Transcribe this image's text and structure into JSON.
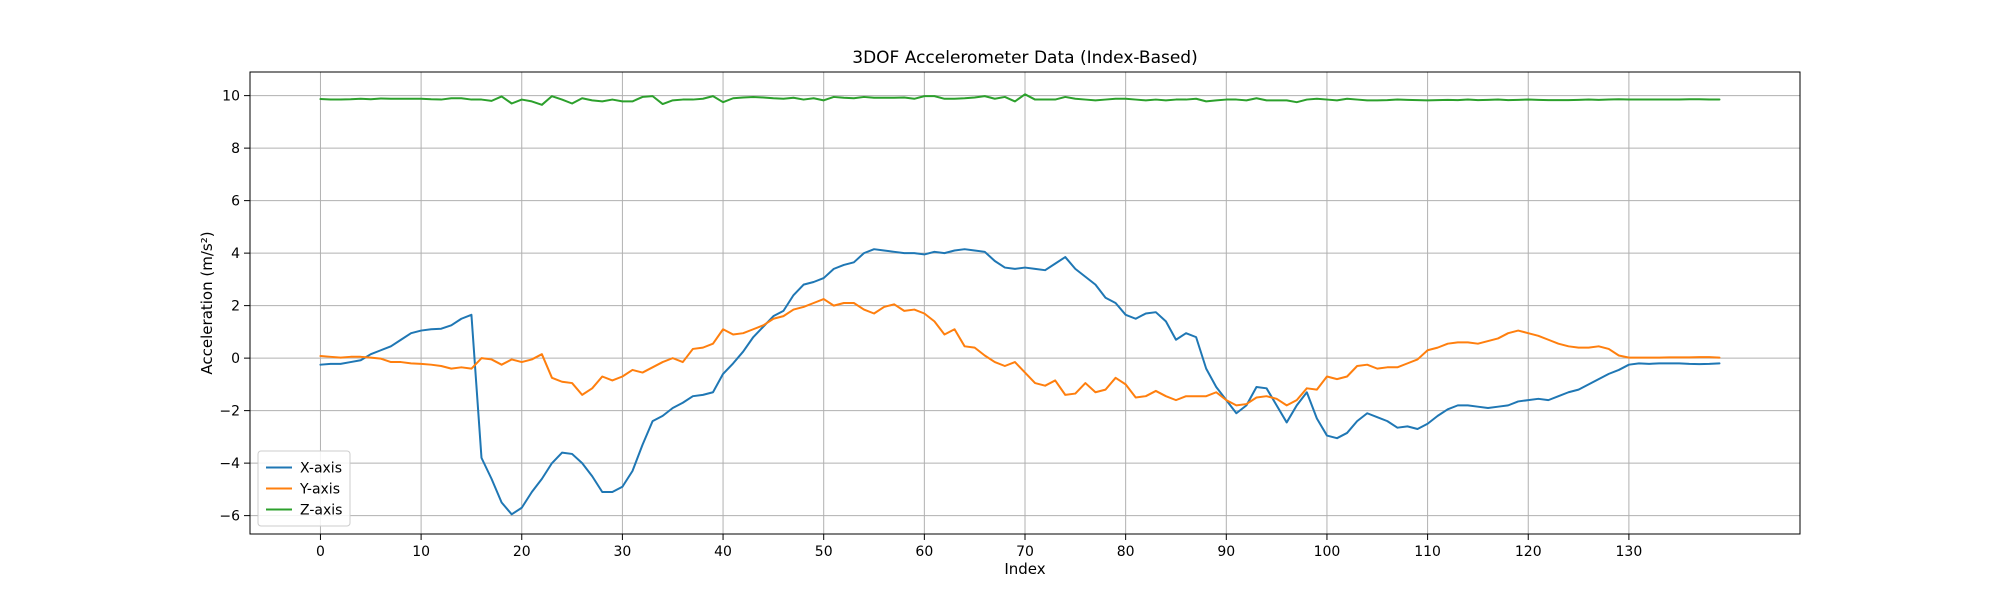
{
  "chart_data": {
    "type": "line",
    "title": "3DOF Accelerometer Data (Index-Based)",
    "xlabel": "Index",
    "ylabel": "Acceleration (m/s²)",
    "xlim": [
      -7,
      147
    ],
    "ylim": [
      -6.7,
      10.9
    ],
    "x_ticks": [
      0,
      10,
      20,
      30,
      40,
      50,
      60,
      70,
      80,
      90,
      100,
      110,
      120,
      130
    ],
    "y_ticks": [
      -6,
      -4,
      -2,
      0,
      2,
      4,
      6,
      8,
      10
    ],
    "grid": true,
    "legend_position": "lower-left",
    "x": [
      0,
      1,
      2,
      3,
      4,
      5,
      6,
      7,
      8,
      9,
      10,
      11,
      12,
      13,
      14,
      15,
      16,
      17,
      18,
      19,
      20,
      21,
      22,
      23,
      24,
      25,
      26,
      27,
      28,
      29,
      30,
      31,
      32,
      33,
      34,
      35,
      36,
      37,
      38,
      39,
      40,
      41,
      42,
      43,
      44,
      45,
      46,
      47,
      48,
      49,
      50,
      51,
      52,
      53,
      54,
      55,
      56,
      57,
      58,
      59,
      60,
      61,
      62,
      63,
      64,
      65,
      66,
      67,
      68,
      69,
      70,
      71,
      72,
      73,
      74,
      75,
      76,
      77,
      78,
      79,
      80,
      81,
      82,
      83,
      84,
      85,
      86,
      87,
      88,
      89,
      90,
      91,
      92,
      93,
      94,
      95,
      96,
      97,
      98,
      99,
      100,
      101,
      102,
      103,
      104,
      105,
      106,
      107,
      108,
      109,
      110,
      111,
      112,
      113,
      114,
      115,
      116,
      117,
      118,
      119,
      120,
      121,
      122,
      123,
      124,
      125,
      126,
      127,
      128,
      129,
      130,
      131,
      132,
      133,
      134,
      135,
      136,
      137,
      138,
      139
    ],
    "series": [
      {
        "name": "X-axis",
        "color": "#1f77b4",
        "values": [
          -0.25,
          -0.22,
          -0.22,
          -0.15,
          -0.08,
          0.15,
          0.3,
          0.45,
          0.7,
          0.95,
          1.05,
          1.1,
          1.12,
          1.25,
          1.5,
          1.65,
          -3.8,
          -4.6,
          -5.5,
          -5.95,
          -5.7,
          -5.1,
          -4.6,
          -4.0,
          -3.6,
          -3.65,
          -4.0,
          -4.5,
          -5.1,
          -5.1,
          -4.9,
          -4.3,
          -3.3,
          -2.4,
          -2.2,
          -1.9,
          -1.7,
          -1.45,
          -1.4,
          -1.3,
          -0.6,
          -0.2,
          0.25,
          0.8,
          1.2,
          1.6,
          1.8,
          2.4,
          2.8,
          2.9,
          3.05,
          3.4,
          3.55,
          3.65,
          4.0,
          4.15,
          4.1,
          4.05,
          4.0,
          4.0,
          3.95,
          4.05,
          4.0,
          4.1,
          4.15,
          4.1,
          4.05,
          3.7,
          3.45,
          3.4,
          3.45,
          3.4,
          3.35,
          3.6,
          3.85,
          3.4,
          3.1,
          2.8,
          2.3,
          2.1,
          1.65,
          1.5,
          1.7,
          1.75,
          1.4,
          0.7,
          0.95,
          0.8,
          -0.4,
          -1.1,
          -1.6,
          -2.1,
          -1.8,
          -1.1,
          -1.15,
          -1.8,
          -2.45,
          -1.8,
          -1.3,
          -2.3,
          -2.95,
          -3.05,
          -2.85,
          -2.4,
          -2.1,
          -2.25,
          -2.4,
          -2.65,
          -2.6,
          -2.7,
          -2.5,
          -2.2,
          -1.95,
          -1.8,
          -1.8,
          -1.85,
          -1.9,
          -1.85,
          -1.8,
          -1.65,
          -1.6,
          -1.55,
          -1.6,
          -1.45,
          -1.3,
          -1.2,
          -1.0,
          -0.8,
          -0.6,
          -0.45,
          -0.25,
          -0.2,
          -0.22,
          -0.2,
          -0.2,
          -0.2,
          -0.22,
          -0.23,
          -0.22,
          -0.2
        ]
      },
      {
        "name": "Y-axis",
        "color": "#ff7f0e",
        "values": [
          0.08,
          0.05,
          0.02,
          0.05,
          0.05,
          0.02,
          -0.02,
          -0.15,
          -0.15,
          -0.2,
          -0.22,
          -0.25,
          -0.3,
          -0.4,
          -0.35,
          -0.4,
          0.0,
          -0.05,
          -0.25,
          -0.05,
          -0.15,
          -0.05,
          0.15,
          -0.75,
          -0.9,
          -0.95,
          -1.4,
          -1.15,
          -0.7,
          -0.85,
          -0.7,
          -0.45,
          -0.55,
          -0.35,
          -0.15,
          0.0,
          -0.15,
          0.35,
          0.4,
          0.55,
          1.1,
          0.9,
          0.95,
          1.1,
          1.25,
          1.5,
          1.6,
          1.85,
          1.95,
          2.1,
          2.25,
          2.0,
          2.1,
          2.1,
          1.85,
          1.7,
          1.95,
          2.05,
          1.8,
          1.85,
          1.7,
          1.4,
          0.9,
          1.1,
          0.45,
          0.4,
          0.1,
          -0.15,
          -0.3,
          -0.15,
          -0.55,
          -0.95,
          -1.05,
          -0.85,
          -1.4,
          -1.35,
          -0.95,
          -1.3,
          -1.2,
          -0.75,
          -1.0,
          -1.5,
          -1.45,
          -1.25,
          -1.45,
          -1.6,
          -1.45,
          -1.45,
          -1.45,
          -1.3,
          -1.6,
          -1.8,
          -1.75,
          -1.5,
          -1.45,
          -1.55,
          -1.8,
          -1.6,
          -1.15,
          -1.2,
          -0.7,
          -0.8,
          -0.7,
          -0.3,
          -0.25,
          -0.4,
          -0.35,
          -0.35,
          -0.2,
          -0.05,
          0.3,
          0.4,
          0.55,
          0.6,
          0.6,
          0.55,
          0.65,
          0.75,
          0.95,
          1.05,
          0.95,
          0.85,
          0.7,
          0.55,
          0.45,
          0.4,
          0.4,
          0.45,
          0.35,
          0.1,
          0.02,
          0.02,
          0.02,
          0.02,
          0.03,
          0.03,
          0.03,
          0.04,
          0.04,
          0.02
        ]
      },
      {
        "name": "Z-axis",
        "color": "#2ca02c",
        "values": [
          9.87,
          9.85,
          9.85,
          9.86,
          9.88,
          9.86,
          9.89,
          9.88,
          9.88,
          9.88,
          9.88,
          9.86,
          9.85,
          9.9,
          9.9,
          9.85,
          9.85,
          9.8,
          9.97,
          9.7,
          9.85,
          9.78,
          9.65,
          9.98,
          9.85,
          9.7,
          9.9,
          9.82,
          9.78,
          9.85,
          9.78,
          9.78,
          9.95,
          9.98,
          9.68,
          9.82,
          9.85,
          9.85,
          9.88,
          9.98,
          9.75,
          9.9,
          9.93,
          9.95,
          9.93,
          9.9,
          9.88,
          9.92,
          9.85,
          9.9,
          9.82,
          9.95,
          9.92,
          9.9,
          9.95,
          9.92,
          9.92,
          9.92,
          9.93,
          9.88,
          9.98,
          9.98,
          9.88,
          9.88,
          9.9,
          9.93,
          9.98,
          9.88,
          9.95,
          9.78,
          10.05,
          9.85,
          9.85,
          9.85,
          9.95,
          9.88,
          9.85,
          9.82,
          9.85,
          9.88,
          9.88,
          9.85,
          9.82,
          9.85,
          9.82,
          9.85,
          9.85,
          9.88,
          9.78,
          9.82,
          9.85,
          9.85,
          9.82,
          9.9,
          9.82,
          9.82,
          9.82,
          9.75,
          9.85,
          9.88,
          9.85,
          9.82,
          9.88,
          9.85,
          9.82,
          9.82,
          9.83,
          9.85,
          9.84,
          9.83,
          9.82,
          9.83,
          9.84,
          9.83,
          9.85,
          9.83,
          9.84,
          9.85,
          9.83,
          9.84,
          9.85,
          9.84,
          9.83,
          9.83,
          9.83,
          9.84,
          9.85,
          9.84,
          9.85,
          9.86,
          9.85,
          9.85,
          9.85,
          9.85,
          9.85,
          9.85,
          9.86,
          9.86,
          9.85,
          9.85
        ]
      }
    ]
  }
}
